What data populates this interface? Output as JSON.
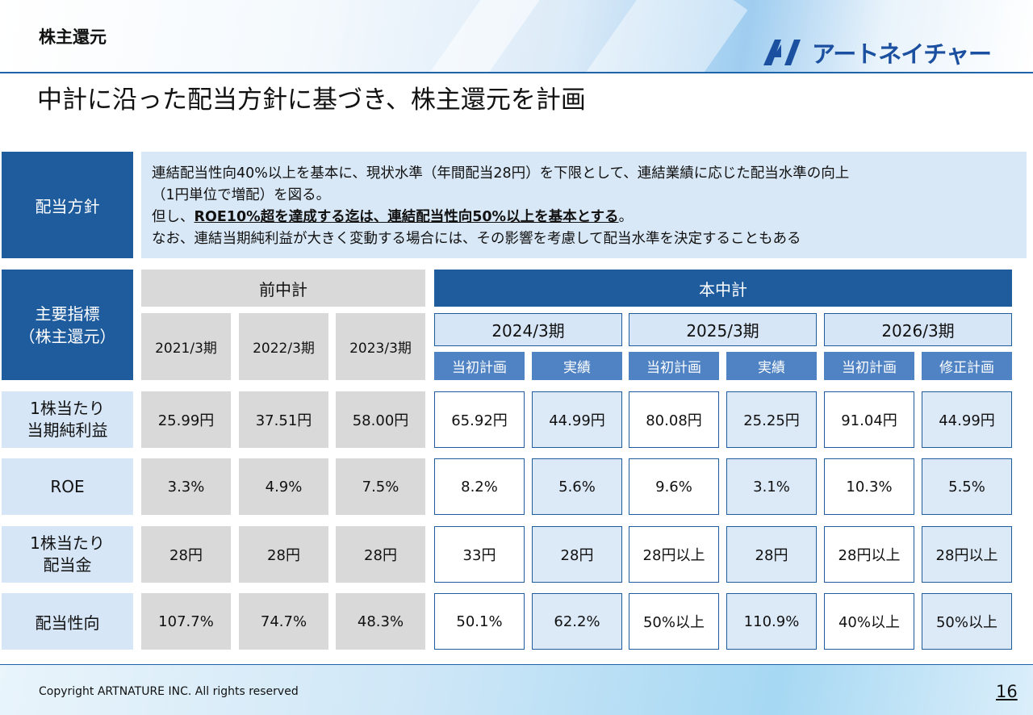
{
  "header": {
    "section": "株主還元",
    "logo_text": "アートネイチャー"
  },
  "title": "中計に沿った配当方針に基づき、株主還元を計画",
  "policy": {
    "label": "配当方針",
    "line1": "連結配当性向40%以上を基本に、現状水準（年間配当28円）を下限として、連結業績に応じた配当水準の向上",
    "line2": "（1円単位で増配）を図る。",
    "line3_prefix": "但し、",
    "line3_emph": "ROE10%超を達成する迄は、連結配当性向50%以上を基本とする",
    "line3_suffix": "。",
    "line4": "なお、連結当期純利益が大きく変動する場合には、その影響を考慮して配当水準を決定することもある"
  },
  "table": {
    "corner_label": "主要指標\n（株主還元）",
    "prev_plan": "前中計",
    "curr_plan": "本中計",
    "prev_years": [
      "2021/3期",
      "2022/3期",
      "2023/3期"
    ],
    "curr_years": [
      "2024/3期",
      "2025/3期",
      "2026/3期"
    ],
    "sub_headers": [
      "当初計画",
      "実績",
      "当初計画",
      "実績",
      "当初計画",
      "修正計画"
    ],
    "rows": [
      {
        "label": "1株当たり\n当期純利益",
        "prev": [
          "25.99円",
          "37.51円",
          "58.00円"
        ],
        "curr": [
          "65.92円",
          "44.99円",
          "80.08円",
          "25.25円",
          "91.04円",
          "44.99円"
        ]
      },
      {
        "label": "ROE",
        "prev": [
          "3.3%",
          "4.9%",
          "7.5%"
        ],
        "curr": [
          "8.2%",
          "5.6%",
          "9.6%",
          "3.1%",
          "10.3%",
          "5.5%"
        ]
      },
      {
        "label": "1株当たり\n配当金",
        "prev": [
          "28円",
          "28円",
          "28円"
        ],
        "curr": [
          "33円",
          "28円",
          "28円以上",
          "28円",
          "28円以上",
          "28円以上"
        ]
      },
      {
        "label": "配当性向",
        "prev": [
          "107.7%",
          "74.7%",
          "48.3%"
        ],
        "curr": [
          "50.1%",
          "62.2%",
          "50%以上",
          "110.9%",
          "40%以上",
          "50%以上"
        ]
      }
    ]
  },
  "footer": {
    "copyright": "Copyright ARTNATURE INC. All rights reserved",
    "page": "16"
  },
  "colors": {
    "navy": "#1f5c9e",
    "sub_header": "#4f83c4",
    "light_blue": "#d6e6f6",
    "gray": "#d9d9d9"
  }
}
